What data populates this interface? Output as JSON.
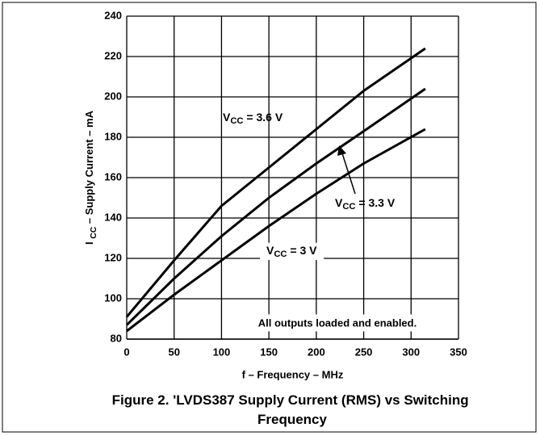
{
  "chart_data": {
    "type": "line",
    "title": "Figure 2. 'LVDS387 Supply Current (RMS) vs Switching Frequency",
    "x_label": "f – Frequency – MHz",
    "y_label": "I CC – Supply Current – mA",
    "annotation": "All outputs loaded and enabled.",
    "x": [
      0,
      50,
      100,
      150,
      200,
      250,
      315
    ],
    "series": [
      {
        "name": "VCC = 3.6 V",
        "color": "#000000",
        "values": [
          91,
          119,
          146,
          165,
          184,
          203,
          224
        ]
      },
      {
        "name": "VCC = 3.3 V",
        "color": "#000000",
        "values": [
          87,
          110,
          131,
          150,
          167,
          183,
          204
        ]
      },
      {
        "name": "VCC = 3 V",
        "color": "#000000",
        "values": [
          84,
          102,
          119,
          136,
          152,
          167,
          184
        ]
      }
    ],
    "xlim": [
      0,
      350
    ],
    "xticks": [
      0,
      50,
      100,
      150,
      200,
      250,
      300,
      350
    ],
    "ylim": [
      80,
      240
    ],
    "yticks": [
      80,
      100,
      120,
      140,
      160,
      180,
      200,
      220,
      240
    ],
    "grid": true
  }
}
